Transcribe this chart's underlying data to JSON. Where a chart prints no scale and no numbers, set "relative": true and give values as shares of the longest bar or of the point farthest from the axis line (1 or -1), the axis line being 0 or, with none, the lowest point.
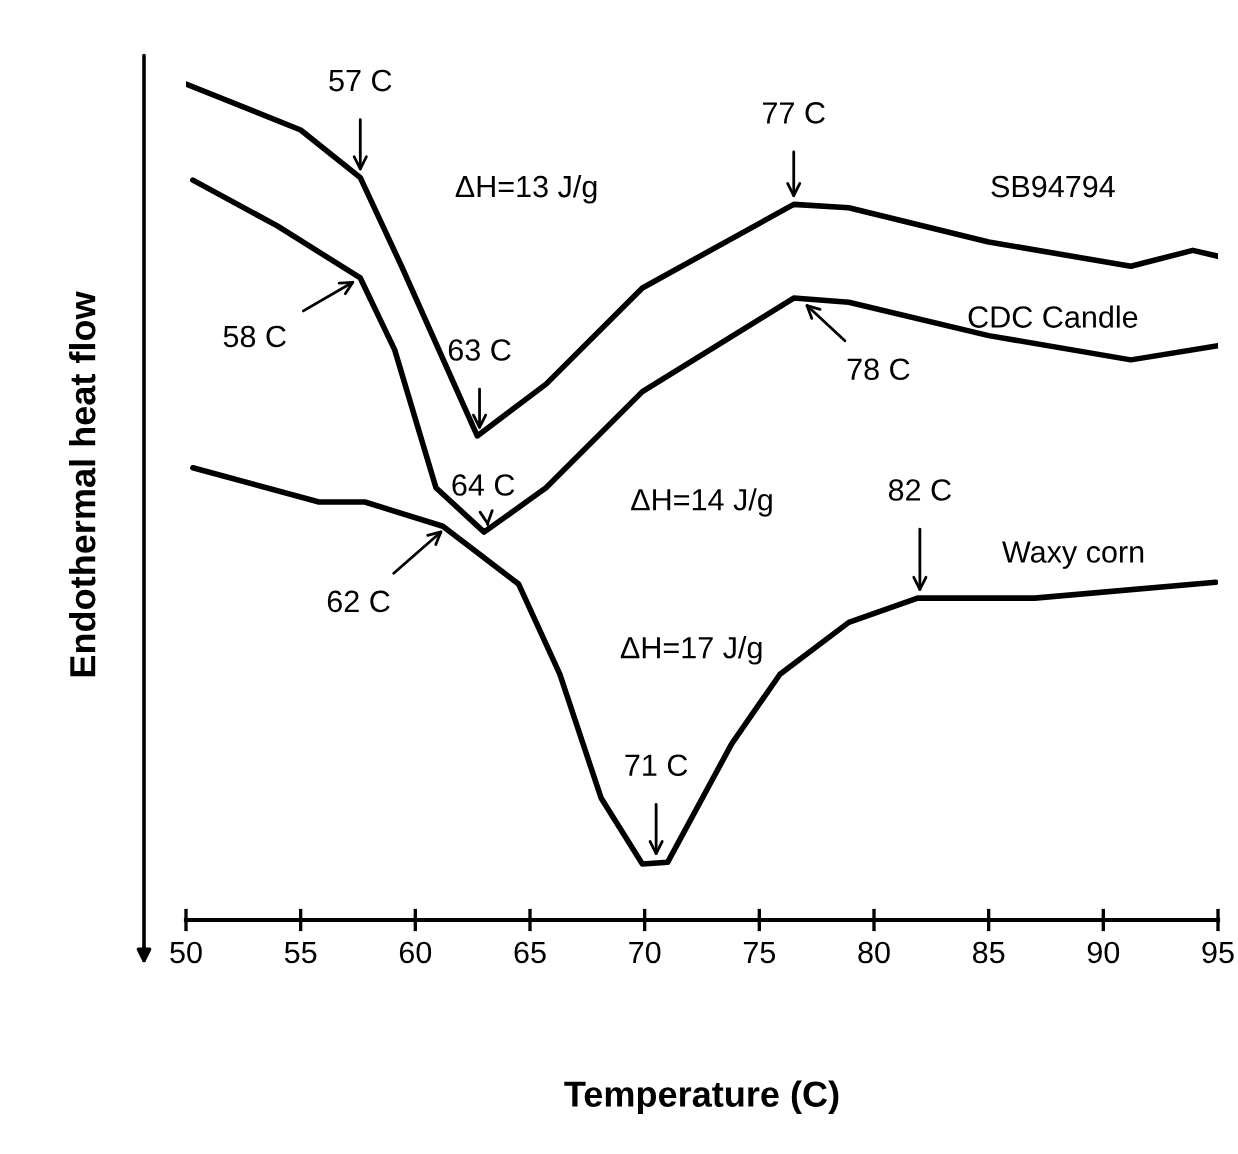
{
  "chart_data": {
    "type": "line",
    "xlabel": "Temperature (C)",
    "ylabel": "Endothermal heat flow",
    "relative": true,
    "xlim": [
      50,
      95
    ],
    "xticks": [
      50,
      55,
      60,
      65,
      70,
      75,
      80,
      85,
      90,
      95
    ],
    "grid": false,
    "legend": false,
    "marker": "none",
    "line_style": "solid",
    "series": [
      {
        "name": "SB94794",
        "color": "#000000",
        "x": [
          50,
          55,
          57.6,
          59.4,
          62.7,
          65.7,
          69.9,
          76.5,
          78.9,
          85,
          91.2,
          93.9,
          95
        ],
        "values": [
          1.0,
          0.945,
          0.888,
          0.782,
          0.579,
          0.641,
          0.756,
          0.856,
          0.852,
          0.811,
          0.782,
          0.801,
          0.794
        ]
      },
      {
        "name": "CDC Candle",
        "color": "#000000",
        "x": [
          50.3,
          54,
          57.6,
          59.1,
          60.9,
          63,
          65.7,
          69.9,
          76.5,
          78.9,
          85,
          91.2,
          95
        ],
        "values": [
          0.885,
          0.83,
          0.768,
          0.682,
          0.517,
          0.464,
          0.517,
          0.632,
          0.744,
          0.739,
          0.699,
          0.67,
          0.687
        ]
      },
      {
        "name": "Waxy corn",
        "color": "#000000",
        "x": [
          50.3,
          55.8,
          57.8,
          61.2,
          64.5,
          66.3,
          68.1,
          69.9,
          71,
          73.8,
          75.9,
          78.9,
          81.9,
          87,
          94.9
        ],
        "values": [
          0.541,
          0.5,
          0.5,
          0.471,
          0.402,
          0.294,
          0.146,
          0.067,
          0.069,
          0.211,
          0.294,
          0.356,
          0.385,
          0.385,
          0.404
        ]
      }
    ],
    "annotations": [
      {
        "text": "57 C",
        "x": 57.6,
        "y": 0.888
      },
      {
        "text": "63 C",
        "x": 62.8,
        "y": 0.579
      },
      {
        "text": "77 C",
        "x": 76.5,
        "y": 0.856
      },
      {
        "text": "58 C",
        "x": 57.6,
        "y": 0.768
      },
      {
        "text": "78 C",
        "x": 76.8,
        "y": 0.742
      },
      {
        "text": "64 C",
        "x": 63.2,
        "y": 0.464
      },
      {
        "text": "62 C",
        "x": 61.4,
        "y": 0.471
      },
      {
        "text": "71 C",
        "x": 70.5,
        "y": 0.069
      },
      {
        "text": "82 C",
        "x": 82,
        "y": 0.385
      },
      "ΔH=13 J/g",
      "ΔH=14 J/g",
      "ΔH=17 J/g"
    ]
  }
}
